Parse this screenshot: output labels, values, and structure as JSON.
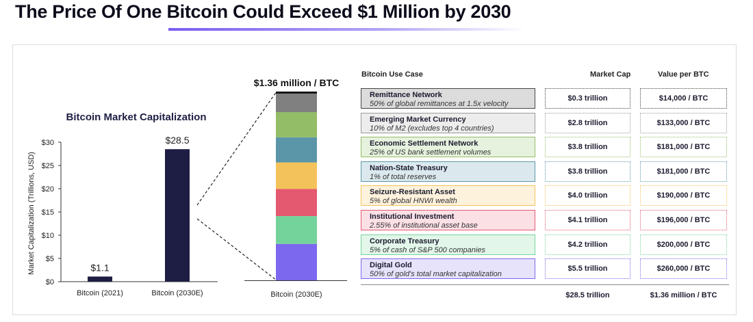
{
  "title": "The Price Of One Bitcoin Could Exceed $1 Million by 2030",
  "chart_data": [
    {
      "type": "bar",
      "title": "Bitcoin Market Capitalization",
      "ylabel": "Market Capitalization (Trillions, USD)",
      "xlabel": "",
      "categories": [
        "Bitcoin (2021)",
        "Bitcoin (2030E)"
      ],
      "values": [
        1.1,
        28.5
      ],
      "value_labels": [
        "$1.1",
        "$28.5"
      ],
      "ylim": [
        0,
        30
      ],
      "yticks": [
        0,
        5,
        10,
        15,
        20,
        25,
        30
      ],
      "ytick_labels": [
        "$0",
        "$5",
        "$10",
        "$15",
        "$20",
        "$25",
        "$30"
      ],
      "bar_color": "#1e1e44",
      "grid": false
    },
    {
      "type": "bar",
      "stacked": true,
      "title": "",
      "annotation": "$1.36 million / BTC",
      "category": "Bitcoin (2030E)",
      "series": [
        {
          "name": "Digital Gold",
          "value": 5.5,
          "color": "#7b68ee"
        },
        {
          "name": "Corporate Treasury",
          "value": 4.2,
          "color": "#74d39a"
        },
        {
          "name": "Institutional Investment",
          "value": 4.1,
          "color": "#e45870"
        },
        {
          "name": "Seizure-Resistant Asset",
          "value": 4.0,
          "color": "#f4c25a"
        },
        {
          "name": "Nation-State Treasury",
          "value": 3.8,
          "color": "#5b96a8"
        },
        {
          "name": "Economic Settlement Network",
          "value": 3.8,
          "color": "#93bd66"
        },
        {
          "name": "Emerging Market Currency",
          "value": 2.8,
          "color": "#808080"
        },
        {
          "name": "Remittance Network",
          "value": 0.3,
          "color": "#111111"
        }
      ],
      "total": 28.5
    },
    {
      "type": "table",
      "headers": [
        "Bitcoin Use Case",
        "Market Cap",
        "Value per BTC"
      ],
      "rows": [
        {
          "name": "Remittance Network",
          "desc": "50% of global remittances at 1.5x velocity",
          "cap": "$0.3 trillion",
          "per_btc": "$14,000 / BTC",
          "bg": "#dcdcdc",
          "border": "#444444"
        },
        {
          "name": "Emerging Market Currency",
          "desc": "10% of M2 (excludes top 4 countries)",
          "cap": "$2.8 trillion",
          "per_btc": "$133,000 / BTC",
          "bg": "#ededed",
          "border": "#999999"
        },
        {
          "name": "Economic Settlement Network",
          "desc": "25% of US bank settlement volumes",
          "cap": "$3.8 trillion",
          "per_btc": "$181,000 / BTC",
          "bg": "#e6f2dd",
          "border": "#93bd66"
        },
        {
          "name": "Nation-State Treasury",
          "desc": "1% of total reserves",
          "cap": "$3.8 trillion",
          "per_btc": "$181,000 / BTC",
          "bg": "#dbe9ee",
          "border": "#5b96a8"
        },
        {
          "name": "Seizure-Resistant Asset",
          "desc": "5% of global HNWI wealth",
          "cap": "$4.0 trillion",
          "per_btc": "$190,000 / BTC",
          "bg": "#fdf2dc",
          "border": "#f4c25a"
        },
        {
          "name": "Institutional Investment",
          "desc": "2.55% of institutional asset base",
          "cap": "$4.1 trillion",
          "per_btc": "$196,000 / BTC",
          "bg": "#fbe0e5",
          "border": "#e45870"
        },
        {
          "name": "Corporate Treasury",
          "desc": "5% of cash of S&P 500 companies",
          "cap": "$4.2 trillion",
          "per_btc": "$200,000 / BTC",
          "bg": "#e2f6e9",
          "border": "#74d39a"
        },
        {
          "name": "Digital Gold",
          "desc": "50% of gold's total market capitalization",
          "cap": "$5.5 trillion",
          "per_btc": "$260,000 / BTC",
          "bg": "#e6e3fb",
          "border": "#7b68ee"
        }
      ],
      "totals": {
        "cap": "$28.5 trillion",
        "per_btc": "$1.36 million / BTC"
      }
    }
  ]
}
